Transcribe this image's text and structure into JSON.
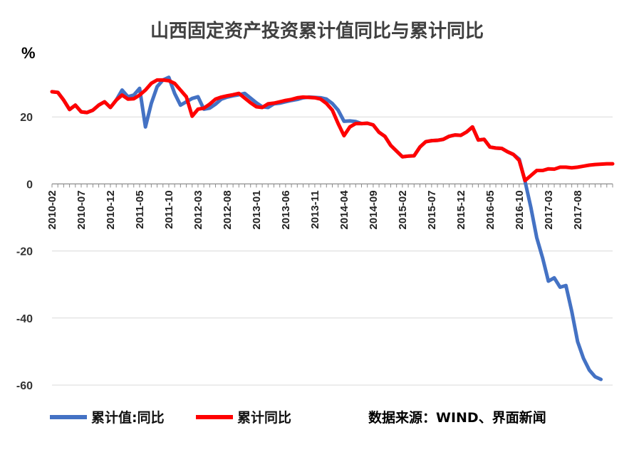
{
  "chart_data": {
    "type": "line",
    "title": "山西固定资产投资累计值同比与累计同比",
    "ylabel": "%",
    "ylim": [
      -60,
      40
    ],
    "yticks": [
      20,
      0,
      -20,
      -40,
      -60
    ],
    "grid": true,
    "legend_position": "bottom-left",
    "source_note": "数据来源：WIND、界面新闻",
    "tick_labels": [
      "2010-02",
      "2010-07",
      "2010-12",
      "2011-05",
      "2011-10",
      "2012-03",
      "2012-08",
      "2013-01",
      "2013-06",
      "2013-11",
      "2014-04",
      "2014-09",
      "2015-02",
      "2015-07",
      "2015-12",
      "2016-05",
      "2016-10",
      "2017-03",
      "2017-08"
    ],
    "x": [
      "2010-02",
      "2010-03",
      "2010-04",
      "2010-05",
      "2010-06",
      "2010-07",
      "2010-08",
      "2010-09",
      "2010-10",
      "2010-11",
      "2010-12",
      "2011-01",
      "2011-02",
      "2011-03",
      "2011-04",
      "2011-05",
      "2011-06",
      "2011-07",
      "2011-08",
      "2011-09",
      "2011-10",
      "2011-11",
      "2011-12",
      "2012-01",
      "2012-02",
      "2012-03",
      "2012-04",
      "2012-05",
      "2012-06",
      "2012-07",
      "2012-08",
      "2012-09",
      "2012-10",
      "2012-11",
      "2012-12",
      "2013-01",
      "2013-02",
      "2013-03",
      "2013-04",
      "2013-05",
      "2013-06",
      "2013-07",
      "2013-08",
      "2013-09",
      "2013-10",
      "2013-11",
      "2013-12",
      "2014-01",
      "2014-02",
      "2014-03",
      "2014-04",
      "2014-05",
      "2014-06",
      "2014-07",
      "2014-08",
      "2014-09",
      "2014-10",
      "2014-11",
      "2014-12",
      "2015-01",
      "2015-02",
      "2015-03",
      "2015-04",
      "2015-05",
      "2015-06",
      "2015-07",
      "2015-08",
      "2015-09",
      "2015-10",
      "2015-11",
      "2015-12",
      "2016-01",
      "2016-02",
      "2016-03",
      "2016-04",
      "2016-05",
      "2016-06",
      "2016-07",
      "2016-08",
      "2016-09",
      "2016-10",
      "2016-11",
      "2016-12",
      "2017-01",
      "2017-02",
      "2017-03",
      "2017-04",
      "2017-05",
      "2017-06",
      "2017-07",
      "2017-08",
      "2017-09",
      "2017-10",
      "2017-11",
      "2017-12",
      "2018-01",
      "2018-02"
    ],
    "series": [
      {
        "name": "累计值:同比",
        "color": "#4472C4",
        "values": [
          27.5,
          27.3,
          25.0,
          22.2,
          23.5,
          21.5,
          21.3,
          22.0,
          23.5,
          24.5,
          22.8,
          25.0,
          28.0,
          26.0,
          26.5,
          28.5,
          17.0,
          24.0,
          29.0,
          31.0,
          31.8,
          27.0,
          23.5,
          24.5,
          25.5,
          26.0,
          22.3,
          22.6,
          23.8,
          25.3,
          25.9,
          26.3,
          26.6,
          27.0,
          25.6,
          24.2,
          23.0,
          22.8,
          23.9,
          24.1,
          24.5,
          24.9,
          25.2,
          25.7,
          25.9,
          25.8,
          25.7,
          25.3,
          24.0,
          22.0,
          18.7,
          18.8,
          18.6,
          18.0,
          18.1,
          17.6,
          15.4,
          14.2,
          11.5,
          9.8,
          8.1,
          8.3,
          8.4,
          11.0,
          12.6,
          12.9,
          13.0,
          13.3,
          14.2,
          14.6,
          14.5,
          15.5,
          17.0,
          13.1,
          13.3,
          11.0,
          10.7,
          10.6,
          9.6,
          8.8,
          7.4,
          0.8,
          -7.0,
          -16.0,
          -22.0,
          -29.0,
          -28.0,
          -30.8,
          -30.3,
          -38.0,
          -47.0,
          -52.0,
          -55.5,
          -57.5,
          -58.3,
          null,
          null
        ]
      },
      {
        "name": "累计同比",
        "color": "#FF0000",
        "values": [
          27.5,
          27.3,
          25.0,
          22.2,
          23.5,
          21.5,
          21.3,
          22.0,
          23.5,
          24.5,
          22.8,
          25.0,
          26.5,
          25.3,
          25.4,
          26.5,
          28.0,
          30.0,
          31.0,
          31.0,
          30.8,
          30.0,
          28.0,
          26.0,
          20.2,
          22.3,
          22.6,
          23.8,
          25.3,
          25.9,
          26.3,
          26.6,
          27.0,
          25.6,
          24.2,
          23.0,
          22.8,
          23.9,
          24.1,
          24.5,
          24.9,
          25.2,
          25.7,
          25.9,
          25.8,
          25.7,
          25.3,
          24.0,
          22.0,
          18.0,
          14.4,
          17.0,
          18.0,
          18.0,
          18.1,
          17.6,
          15.4,
          14.2,
          11.5,
          9.8,
          8.1,
          8.3,
          8.4,
          11.0,
          12.6,
          12.9,
          13.0,
          13.3,
          14.2,
          14.6,
          14.5,
          15.5,
          17.0,
          13.1,
          13.3,
          11.0,
          10.7,
          10.6,
          9.6,
          8.8,
          7.0,
          1.0,
          2.5,
          4.0,
          4.0,
          4.5,
          4.4,
          5.0,
          5.0,
          4.8,
          5.0,
          5.3,
          5.6,
          5.8,
          5.9,
          6.0,
          6.0
        ]
      }
    ]
  }
}
